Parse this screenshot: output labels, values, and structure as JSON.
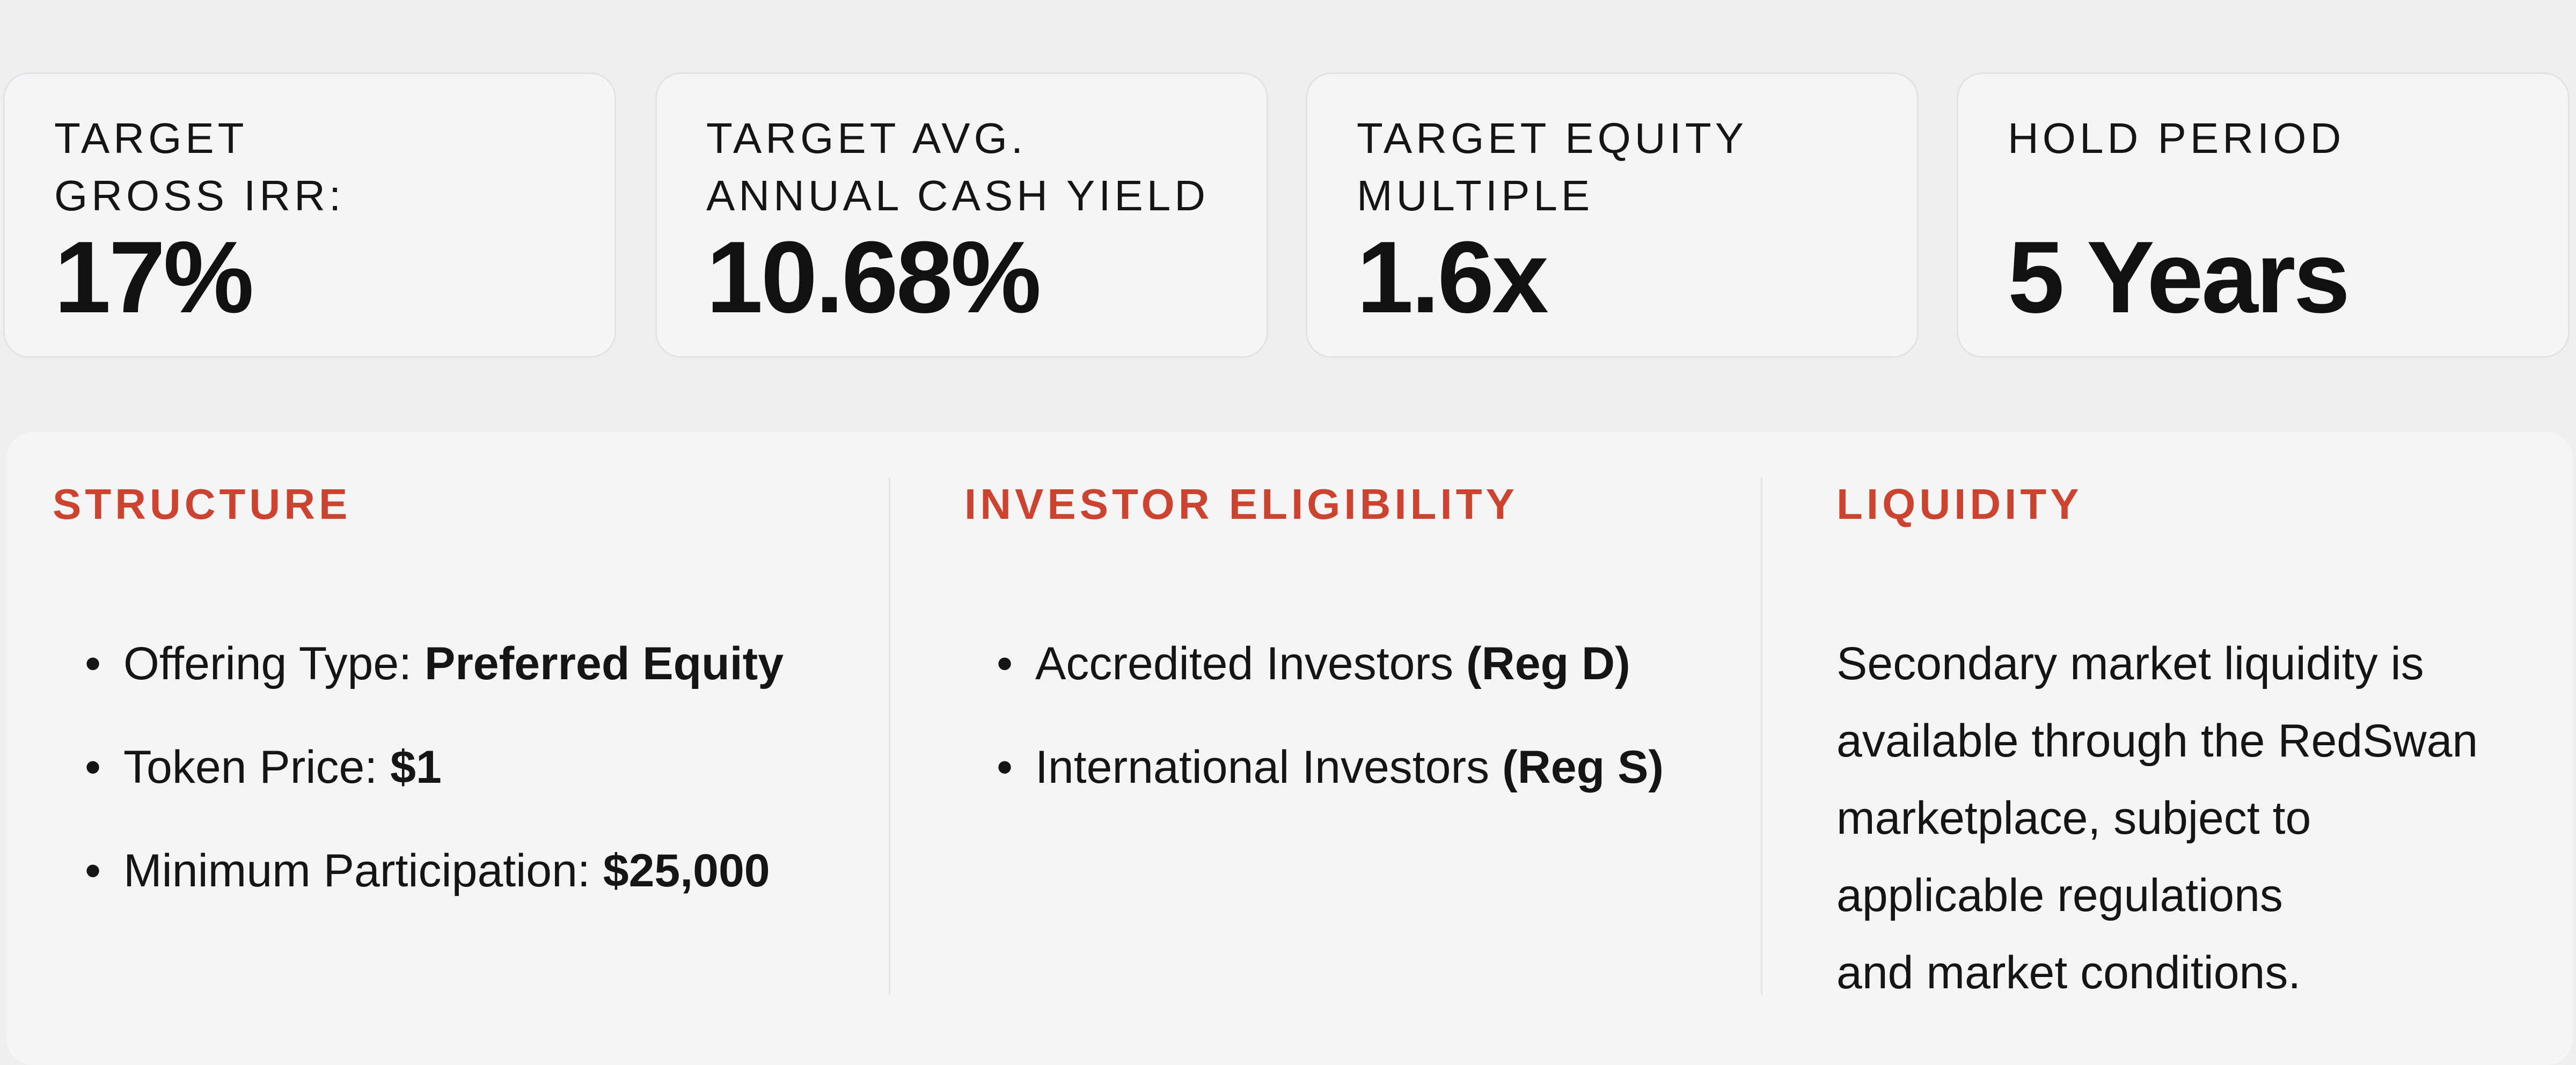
{
  "metrics": [
    {
      "label": [
        "TARGET",
        "GROSS IRR:"
      ],
      "value": "17%"
    },
    {
      "label": [
        "TARGET AVG.",
        "ANNUAL CASH YIELD"
      ],
      "value": "10.68%"
    },
    {
      "label": [
        "TARGET EQUITY",
        "MULTIPLE"
      ],
      "value": "1.6x"
    },
    {
      "label": [
        "HOLD PERIOD"
      ],
      "value": "5 Years"
    }
  ],
  "structure": {
    "heading": "STRUCTURE",
    "items": [
      {
        "label": "Offering Type:",
        "value": "Preferred Equity"
      },
      {
        "label": "Token Price:",
        "value": "$1"
      },
      {
        "label": "Minimum Participation:",
        "value": "$25,000"
      }
    ]
  },
  "eligibility": {
    "heading": "INVESTOR ELIGIBILITY",
    "items": [
      {
        "label": "Accredited Investors",
        "value": "(Reg D)"
      },
      {
        "label": "International Investors",
        "value": "(Reg S)"
      }
    ]
  },
  "liquidity": {
    "heading": "LIQUIDITY",
    "lines": [
      "Secondary market liquidity is",
      "available through the RedSwan",
      "marketplace, subject to",
      "applicable regulations",
      "and market conditions."
    ]
  }
}
